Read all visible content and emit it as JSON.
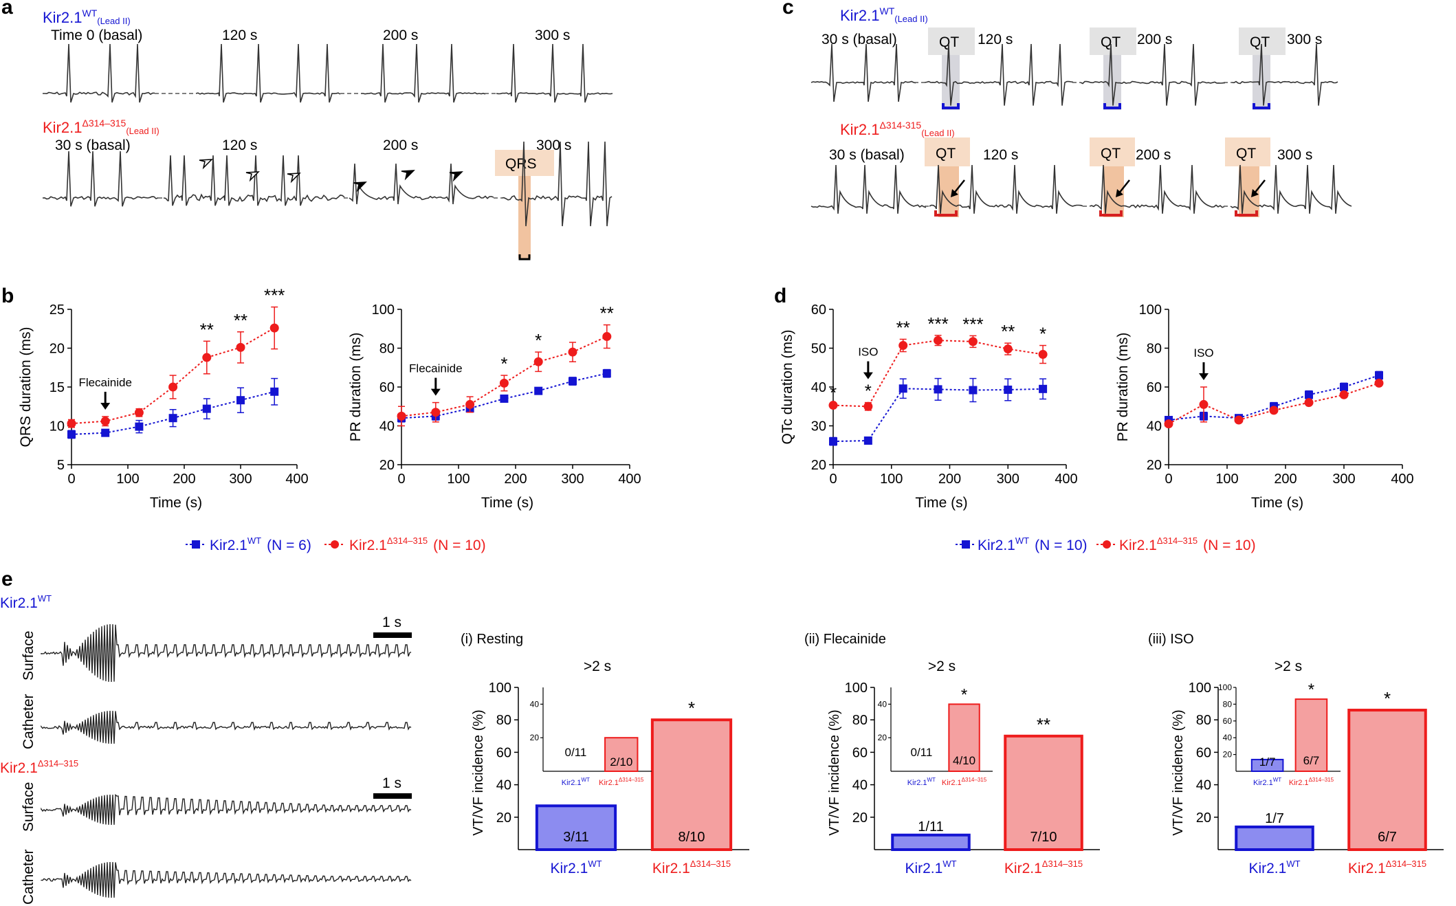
{
  "colors": {
    "wt": "#1414d2",
    "mut": "#ee1c1c",
    "mut_fill": "#f4a0a0",
    "wt_fill": "#8c8cf0",
    "shade_orange": "#f7dcc6",
    "shade_gray": "#e3e3e3"
  },
  "panel_a": {
    "letter": "a",
    "wt_label": "Kir2.1",
    "wt_sup": "WT",
    "wt_lead": "(Lead II)",
    "wt_times": [
      "Time 0 (basal)",
      "120 s",
      "200 s",
      "300 s"
    ],
    "mut_label": "Kir2.1",
    "mut_sup": "Δ314–315",
    "mut_lead": "(Lead II)",
    "mut_times": [
      "30 s (basal)",
      "120 s",
      "200 s",
      "300 s"
    ],
    "box_label": "QRS"
  },
  "panel_c": {
    "letter": "c",
    "wt_label": "Kir2.1",
    "wt_sup": "WT",
    "wt_lead": "(Lead II)",
    "wt_times": [
      "30 s (basal)",
      "120 s",
      "200 s",
      "300 s"
    ],
    "mut_label": "Kir2.1",
    "mut_sup": "Δ314-315",
    "mut_lead": "(Lead II)",
    "mut_times": [
      "30 s (basal)",
      "120 s",
      "200 s",
      "300 s"
    ],
    "box_label": "QT"
  },
  "panel_b": {
    "letter": "b"
  },
  "panel_d": {
    "letter": "d"
  },
  "panel_e": {
    "letter": "e",
    "wt_label": "Kir2.1",
    "wt_sup": "WT",
    "mut_label": "Kir2.1",
    "mut_sup": "Δ314–315",
    "surface": "Surface",
    "catheter": "Catheter",
    "scale": "1 s"
  },
  "legend_b": {
    "wt": "Kir2.1",
    "wt_sup": "WT",
    "wt_n": "(N = 6)",
    "mut": "Kir2.1",
    "mut_sup": "Δ314–315",
    "mut_n": "(N = 10)"
  },
  "legend_d": {
    "wt": "Kir2.1",
    "wt_sup": "WT",
    "wt_n": "(N = 10)",
    "mut": "Kir2.1",
    "mut_sup": "Δ314–315",
    "mut_n": "(N = 10)"
  },
  "chart_data": [
    {
      "id": "b1",
      "type": "line",
      "xlabel": "Time (s)",
      "ylabel": "QRS duration (ms)",
      "xlim": [
        0,
        400
      ],
      "ylim": [
        5,
        25
      ],
      "xticks": [
        0,
        100,
        200,
        300,
        400
      ],
      "yticks": [
        5,
        10,
        15,
        20,
        25
      ],
      "x": [
        0,
        60,
        120,
        180,
        240,
        300,
        360
      ],
      "series": [
        {
          "name": "Kir2.1 WT",
          "values": [
            8.9,
            9.1,
            9.9,
            11.0,
            12.2,
            13.3,
            14.4
          ],
          "err": [
            0.5,
            0.4,
            0.8,
            1.1,
            1.3,
            1.6,
            1.7
          ]
        },
        {
          "name": "Kir2.1 Δ314–315",
          "values": [
            10.3,
            10.6,
            11.7,
            15.0,
            18.8,
            20.1,
            22.6
          ],
          "err": [
            0.5,
            0.6,
            0.5,
            1.5,
            2.1,
            2.0,
            2.7
          ]
        }
      ],
      "annotations": [
        {
          "x": 240,
          "text": "**"
        },
        {
          "x": 300,
          "text": "**"
        },
        {
          "x": 360,
          "text": "***"
        }
      ],
      "arrow": {
        "x": 60,
        "label": "Flecainide"
      }
    },
    {
      "id": "b2",
      "type": "line",
      "xlabel": "Time (s)",
      "ylabel": "PR duration (ms)",
      "xlim": [
        0,
        400
      ],
      "ylim": [
        20,
        100
      ],
      "xticks": [
        0,
        100,
        200,
        300,
        400
      ],
      "yticks": [
        20,
        40,
        60,
        80,
        100
      ],
      "x": [
        0,
        60,
        120,
        180,
        240,
        300,
        360
      ],
      "series": [
        {
          "name": "Kir2.1 WT",
          "values": [
            44,
            45,
            49,
            54,
            58,
            63,
            67
          ],
          "err": [
            2,
            2,
            2,
            1,
            1,
            2,
            2
          ]
        },
        {
          "name": "Kir2.1 Δ314–315",
          "values": [
            45,
            47,
            51,
            62,
            73,
            78,
            86
          ],
          "err": [
            5,
            5,
            4,
            4,
            5,
            5,
            6
          ]
        }
      ],
      "annotations": [
        {
          "x": 180,
          "text": "*"
        },
        {
          "x": 240,
          "text": "*"
        },
        {
          "x": 360,
          "text": "**"
        }
      ],
      "arrow": {
        "x": 60,
        "label": "Flecainide"
      }
    },
    {
      "id": "d1",
      "type": "line",
      "xlabel": "Time (s)",
      "ylabel": "QTc duration (ms)",
      "xlim": [
        0,
        400
      ],
      "ylim": [
        20,
        60
      ],
      "xticks": [
        0,
        100,
        200,
        300,
        400
      ],
      "yticks": [
        20,
        30,
        40,
        50,
        60
      ],
      "x": [
        0,
        60,
        120,
        180,
        240,
        300,
        360
      ],
      "series": [
        {
          "name": "Kir2.1 WT",
          "values": [
            26,
            26.2,
            39.6,
            39.4,
            39.2,
            39.3,
            39.5
          ],
          "err": [
            1,
            0.4,
            2.5,
            2.8,
            3.0,
            2.8,
            2.6
          ]
        },
        {
          "name": "Kir2.1 Δ314–315",
          "values": [
            35.3,
            35,
            50.7,
            52,
            51.7,
            49.8,
            48.4
          ],
          "err": [
            0.3,
            1,
            1.6,
            1.3,
            1.5,
            1.5,
            2.3
          ]
        }
      ],
      "annotations": [
        {
          "x": 0,
          "text": "*"
        },
        {
          "x": 60,
          "text": "*"
        },
        {
          "x": 120,
          "text": "**"
        },
        {
          "x": 180,
          "text": "***"
        },
        {
          "x": 240,
          "text": "***"
        },
        {
          "x": 300,
          "text": "**"
        },
        {
          "x": 360,
          "text": "*"
        }
      ],
      "arrow": {
        "x": 60,
        "label": "ISO"
      }
    },
    {
      "id": "d2",
      "type": "line",
      "xlabel": "Time (s)",
      "ylabel": "PR duration (ms)",
      "xlim": [
        0,
        400
      ],
      "ylim": [
        20,
        100
      ],
      "xticks": [
        0,
        100,
        200,
        300,
        400
      ],
      "yticks": [
        20,
        40,
        60,
        80,
        100
      ],
      "x": [
        0,
        60,
        120,
        180,
        240,
        300,
        360
      ],
      "series": [
        {
          "name": "Kir2.1 WT",
          "values": [
            43,
            45,
            44,
            50,
            56,
            60,
            66
          ],
          "err": [
            1,
            2,
            1,
            2,
            2,
            2,
            2
          ]
        },
        {
          "name": "Kir2.1 Δ314–315",
          "values": [
            41,
            51,
            43,
            48,
            52,
            56,
            62
          ],
          "err": [
            1,
            9,
            1,
            1,
            1,
            1,
            1
          ]
        }
      ],
      "annotations": [],
      "arrow": {
        "x": 60,
        "label": "ISO"
      }
    },
    {
      "id": "e1",
      "type": "bar",
      "title": "(i) Resting",
      "ylabel": "VT/VF incidence (%)",
      "ylim": [
        0,
        100
      ],
      "yticks": [
        20,
        40,
        60,
        80,
        100
      ],
      "categories": [
        "Kir2.1 WT",
        "Kir2.1 Δ314–315"
      ],
      "values": [
        27,
        80
      ],
      "labels": [
        "3/11",
        "8/10"
      ],
      "sig": [
        "",
        "*"
      ],
      "inset": {
        "title": ">2 s",
        "ylim": [
          0,
          50
        ],
        "yticks": [
          20,
          40
        ],
        "values": [
          0,
          20
        ],
        "labels": [
          "0/11",
          "2/10"
        ],
        "sig": [
          "",
          ""
        ]
      }
    },
    {
      "id": "e2",
      "type": "bar",
      "title": "(ii) Flecainide",
      "ylabel": "VT/VF incidence (%)",
      "ylim": [
        0,
        100
      ],
      "yticks": [
        20,
        40,
        60,
        80,
        100
      ],
      "categories": [
        "Kir2.1 WT",
        "Kir2.1 Δ314–315"
      ],
      "values": [
        9,
        70
      ],
      "labels": [
        "1/11",
        "7/10"
      ],
      "sig": [
        "",
        "**"
      ],
      "inset": {
        "title": ">2 s",
        "ylim": [
          0,
          50
        ],
        "yticks": [
          20,
          40
        ],
        "values": [
          0,
          40
        ],
        "labels": [
          "0/11",
          "4/10"
        ],
        "sig": [
          "",
          "*"
        ]
      }
    },
    {
      "id": "e3",
      "type": "bar",
      "title": "(iii) ISO",
      "ylabel": "VT/VF incidence (%)",
      "ylim": [
        0,
        100
      ],
      "yticks": [
        20,
        40,
        60,
        80,
        100
      ],
      "categories": [
        "Kir2.1 WT",
        "Kir2.1 Δ314–315"
      ],
      "values": [
        14,
        86
      ],
      "labels": [
        "1/7",
        "6/7"
      ],
      "sig": [
        "",
        "*"
      ],
      "inset": {
        "title": ">2 s",
        "ylim": [
          0,
          100
        ],
        "yticks": [
          20,
          40,
          60,
          80,
          100
        ],
        "values": [
          14,
          86
        ],
        "labels": [
          "1/7",
          "6/7"
        ],
        "sig": [
          "",
          "*"
        ]
      }
    }
  ]
}
